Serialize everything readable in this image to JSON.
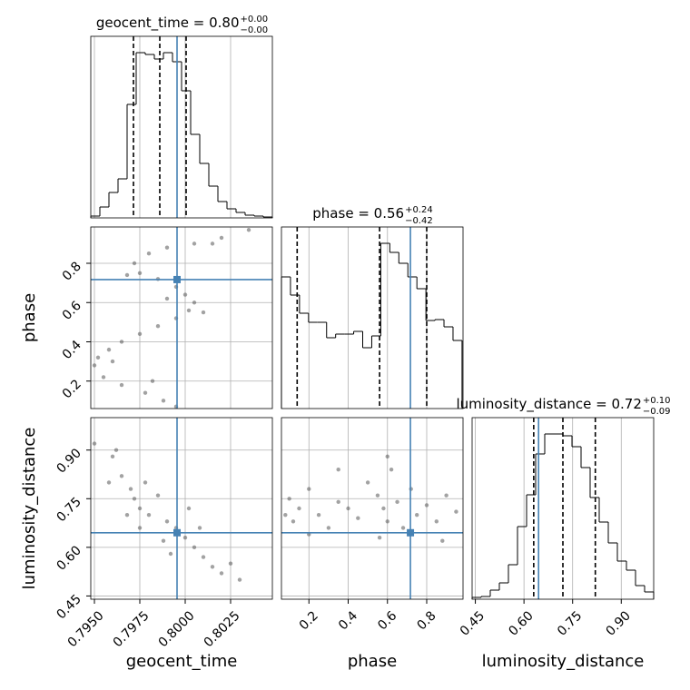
{
  "chart_data": {
    "type": "corner",
    "parameters": [
      {
        "name": "geocent_time",
        "title": "geocent_time = 0.80",
        "plus": "+0.00",
        "minus": "−0.00",
        "lim": [
          0.7948,
          0.8048
        ],
        "ticks": [
          {
            "value": 0.795,
            "label": "0.7950"
          },
          0.7975,
          {
            "value": 0.8,
            "label": "0.8000"
          },
          0.8025
        ],
        "truth": 0.79955,
        "quantiles": [
          0.79715,
          0.7986,
          0.80005
        ],
        "bins": [
          0.7948,
          0.7953,
          0.7958,
          0.7963,
          0.7968,
          0.7973,
          0.7978,
          0.7983,
          0.7988,
          0.7993,
          0.7998,
          0.8003,
          0.8008,
          0.8013,
          0.8018,
          0.8023,
          0.8028,
          0.8033,
          0.8038,
          0.8043,
          0.8048
        ],
        "counts": [
          2,
          12,
          28,
          43,
          125,
          182,
          180,
          175,
          182,
          172,
          140,
          92,
          60,
          35,
          18,
          10,
          6,
          3,
          2,
          1
        ],
        "count_lim": [
          0,
          200
        ]
      },
      {
        "name": "phase",
        "title": "phase = 0.56",
        "plus": "+0.24",
        "minus": "−0.42",
        "lim": [
          0.06,
          0.985
        ],
        "ticks": [
          0.2,
          0.4,
          0.6,
          0.8
        ],
        "truth": 0.717,
        "quantiles": [
          0.14,
          0.56,
          0.8
        ],
        "bins": [
          0.06,
          0.106,
          0.152,
          0.198,
          0.244,
          0.29,
          0.336,
          0.382,
          0.428,
          0.474,
          0.52,
          0.566,
          0.612,
          0.658,
          0.704,
          0.75,
          0.796,
          0.842,
          0.888,
          0.934,
          0.98
        ],
        "counts": [
          145,
          125,
          105,
          95,
          95,
          78,
          82,
          82,
          85,
          67,
          80,
          182,
          172,
          160,
          145,
          132,
          97,
          98,
          90,
          75
        ],
        "count_lim": [
          0,
          200
        ]
      },
      {
        "name": "luminosity_distance",
        "title": "luminosity_distance = 0.72",
        "plus": "+0.10",
        "minus": "−0.09",
        "lim": [
          0.44,
          1.0
        ],
        "ticks": [
          0.45,
          {
            "value": 0.6,
            "label": "0.60"
          },
          0.75,
          {
            "value": 0.9,
            "label": "0.90"
          }
        ],
        "truth": 0.645,
        "quantiles": [
          0.63,
          0.72,
          0.82
        ],
        "bins": [
          0.44,
          0.468,
          0.496,
          0.524,
          0.552,
          0.58,
          0.608,
          0.636,
          0.664,
          0.692,
          0.72,
          0.748,
          0.776,
          0.804,
          0.832,
          0.86,
          0.888,
          0.916,
          0.944,
          0.972,
          1.0
        ],
        "counts": [
          2,
          3,
          10,
          18,
          38,
          80,
          115,
          160,
          182,
          182,
          180,
          168,
          145,
          112,
          85,
          62,
          42,
          32,
          15,
          8
        ],
        "count_lim": [
          0,
          200
        ]
      }
    ],
    "pairs": [
      {
        "x": 0,
        "y": 1,
        "samples_x": [
          0.8035,
          0.802,
          0.8005,
          0.799,
          0.798,
          0.7972,
          0.7975,
          0.7985,
          0.7995,
          0.8,
          0.8005,
          0.8002,
          0.7995,
          0.7985,
          0.7975,
          0.7965,
          0.7958,
          0.7952,
          0.795,
          0.7955,
          0.7965,
          0.7978,
          0.7988,
          0.7995,
          0.801,
          0.7968,
          0.799,
          0.796,
          0.7982,
          0.8015
        ],
        "samples_y": [
          0.97,
          0.93,
          0.9,
          0.88,
          0.85,
          0.8,
          0.75,
          0.72,
          0.68,
          0.64,
          0.6,
          0.56,
          0.52,
          0.48,
          0.44,
          0.4,
          0.36,
          0.32,
          0.28,
          0.22,
          0.18,
          0.14,
          0.1,
          0.07,
          0.55,
          0.74,
          0.62,
          0.3,
          0.2,
          0.9
        ]
      },
      {
        "x": 0,
        "y": 2,
        "samples_x": [
          0.795,
          0.796,
          0.7965,
          0.797,
          0.7972,
          0.7975,
          0.798,
          0.7985,
          0.799,
          0.7995,
          0.8,
          0.8005,
          0.801,
          0.8015,
          0.802,
          0.803,
          0.7978,
          0.7968,
          0.7988,
          0.8002,
          0.7958,
          0.8008,
          0.7992,
          0.7975,
          0.7962,
          0.8025
        ],
        "samples_y": [
          0.92,
          0.88,
          0.82,
          0.78,
          0.75,
          0.72,
          0.7,
          0.76,
          0.68,
          0.66,
          0.63,
          0.6,
          0.57,
          0.54,
          0.52,
          0.5,
          0.8,
          0.7,
          0.62,
          0.72,
          0.8,
          0.66,
          0.58,
          0.66,
          0.9,
          0.55
        ]
      },
      {
        "x": 1,
        "y": 2,
        "samples_x": [
          0.08,
          0.1,
          0.12,
          0.15,
          0.2,
          0.25,
          0.3,
          0.35,
          0.4,
          0.45,
          0.5,
          0.55,
          0.58,
          0.6,
          0.62,
          0.65,
          0.68,
          0.72,
          0.75,
          0.8,
          0.85,
          0.9,
          0.95,
          0.56,
          0.6,
          0.2,
          0.35,
          0.88
        ],
        "samples_y": [
          0.7,
          0.75,
          0.68,
          0.72,
          0.78,
          0.7,
          0.66,
          0.74,
          0.72,
          0.69,
          0.8,
          0.76,
          0.72,
          0.68,
          0.84,
          0.74,
          0.66,
          0.78,
          0.7,
          0.73,
          0.68,
          0.76,
          0.71,
          0.63,
          0.88,
          0.64,
          0.84,
          0.62
        ]
      }
    ],
    "colors": {
      "hist": "#000000",
      "truth": "#4682b4",
      "samples": "#555555"
    },
    "grid": true
  }
}
